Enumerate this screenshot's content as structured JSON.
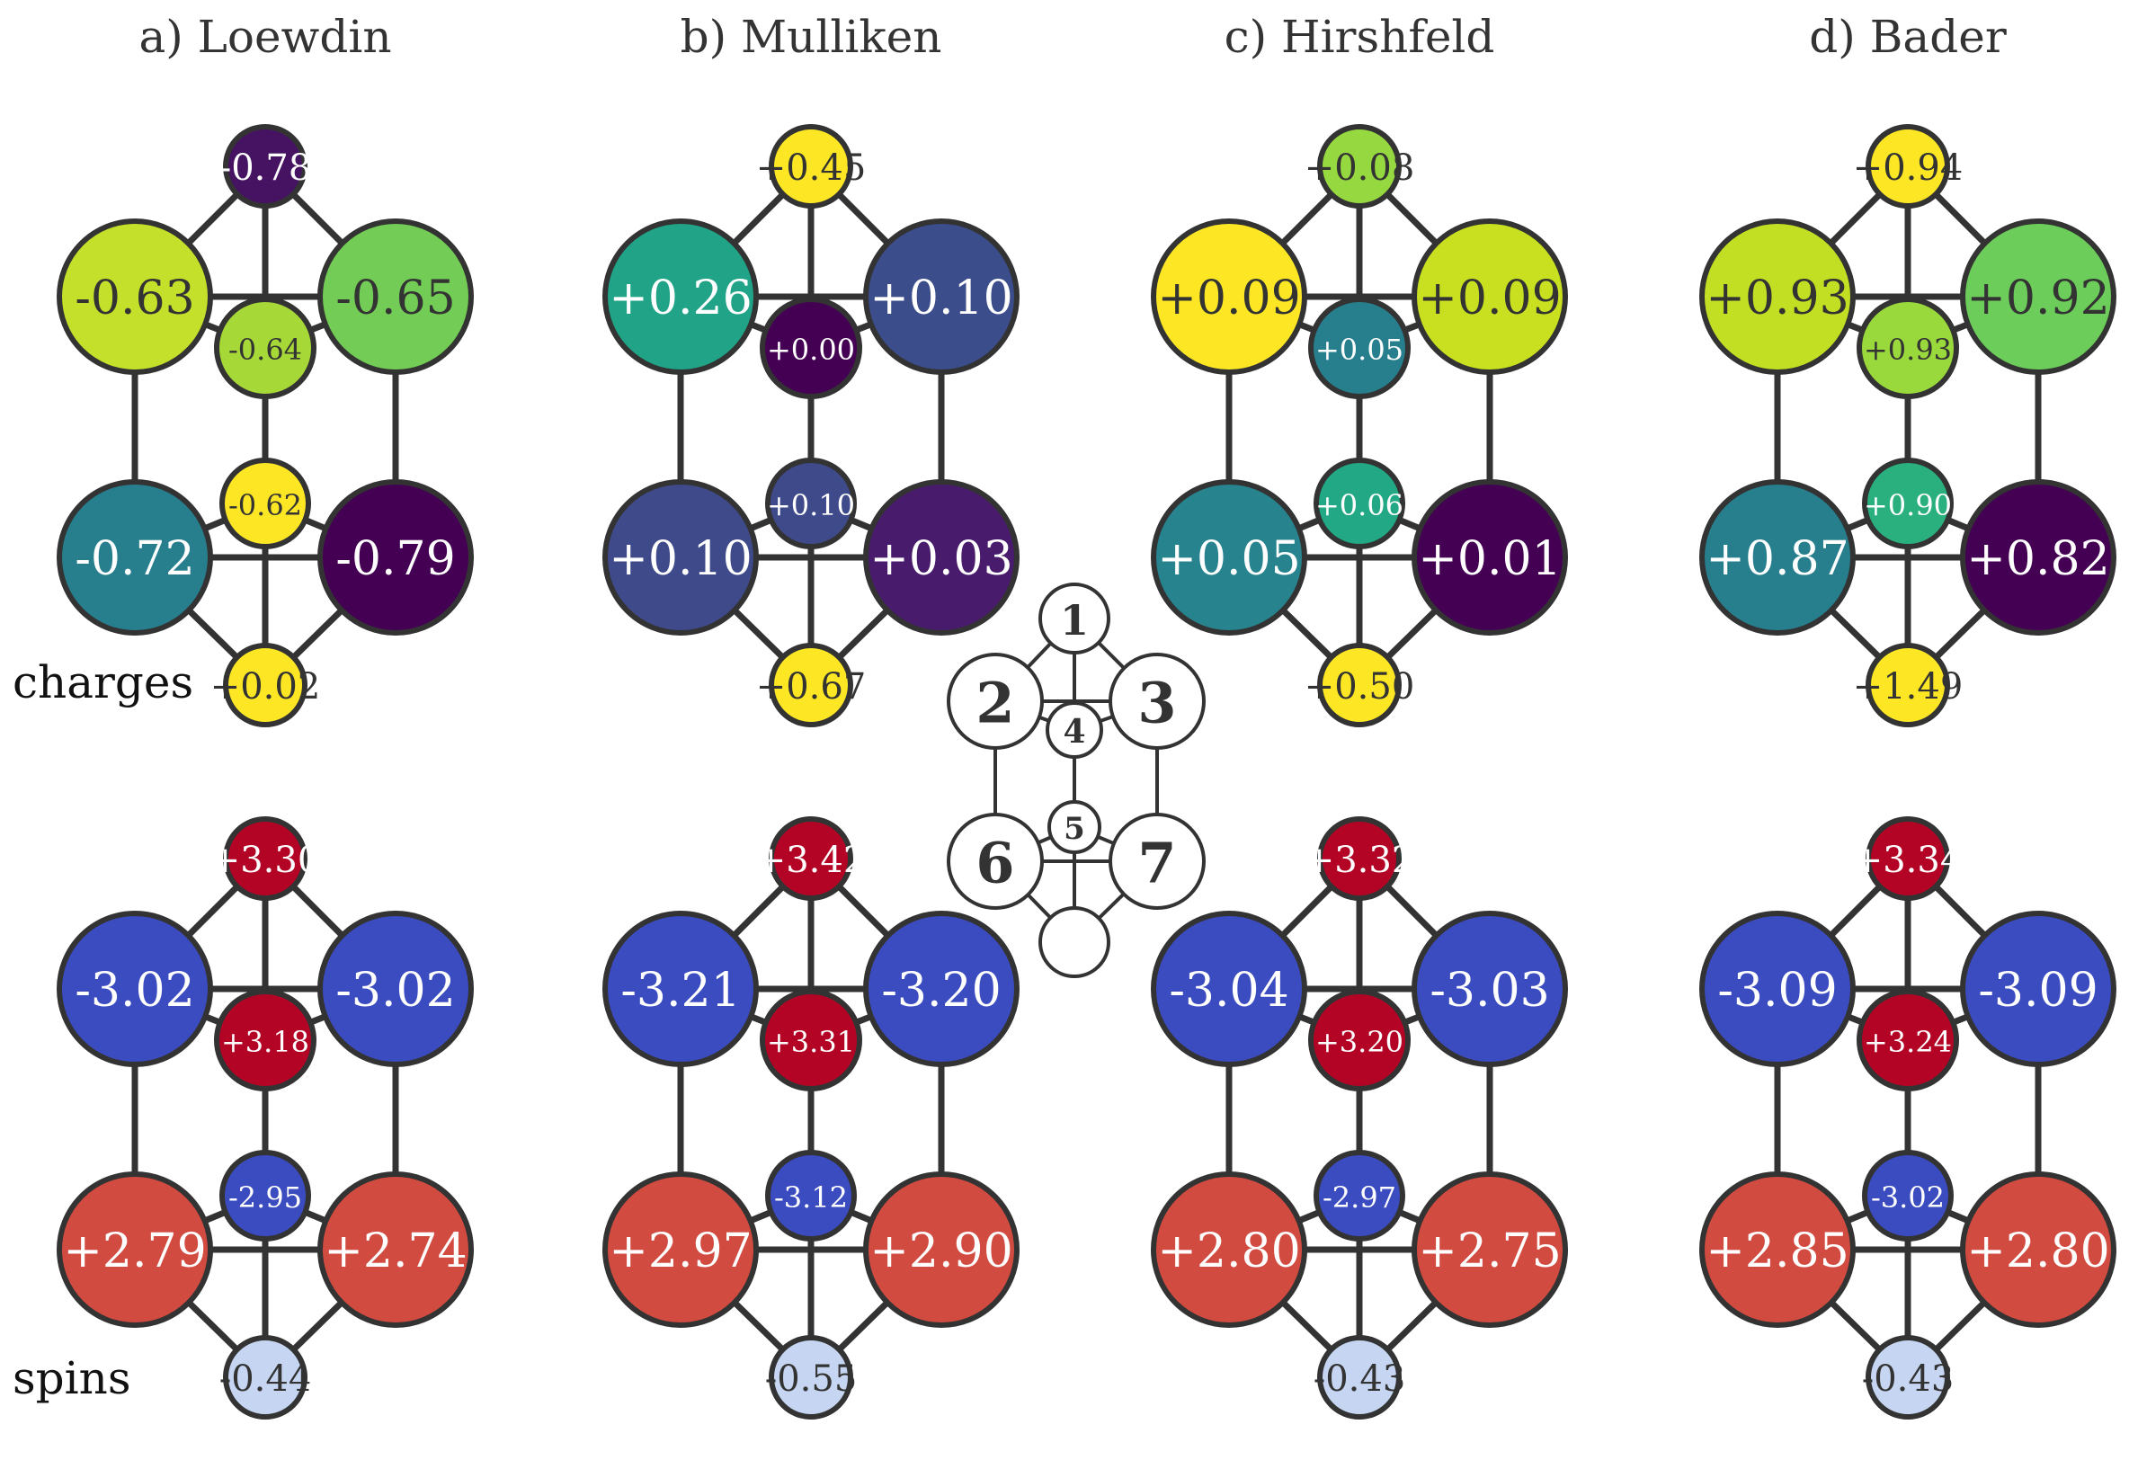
{
  "titles": [
    "a) Loewdin",
    "b) Mulliken",
    "c) Hirshfeld",
    "d) Bader"
  ],
  "row_labels": {
    "charges": "charges",
    "spins": "spins"
  },
  "key_labels": [
    "1",
    "2",
    "3",
    "4",
    "5",
    "6",
    "7"
  ],
  "panels": [
    {
      "method": "Loewdin",
      "charges": [
        {
          "label": "-0.78",
          "color": "#451362",
          "text": "#ffffff"
        },
        {
          "label": "-0.63",
          "color": "#c4e02a",
          "text": "#333333"
        },
        {
          "label": "-0.65",
          "color": "#72cc55",
          "text": "#333333"
        },
        {
          "label": "-0.64",
          "color": "#a6d838",
          "text": "#333333"
        },
        {
          "label": "-0.62",
          "color": "#fde725",
          "text": "#333333"
        },
        {
          "label": "-0.72",
          "color": "#277f8e",
          "text": "#ffffff"
        },
        {
          "label": "-0.79",
          "color": "#440154",
          "text": "#ffffff"
        },
        {
          "label": "+0.02",
          "color": "#fde725",
          "text": "#333333"
        }
      ],
      "spins": [
        {
          "label": "+3.30",
          "color": "#b40426",
          "text": "#ffffff"
        },
        {
          "label": "-3.02",
          "color": "#3b4cc0",
          "text": "#ffffff"
        },
        {
          "label": "-3.02",
          "color": "#3b4cc0",
          "text": "#ffffff"
        },
        {
          "label": "+3.18",
          "color": "#b40426",
          "text": "#ffffff"
        },
        {
          "label": "-2.95",
          "color": "#3b4cc0",
          "text": "#ffffff"
        },
        {
          "label": "+2.79",
          "color": "#d24b40",
          "text": "#ffffff"
        },
        {
          "label": "+2.74",
          "color": "#d24b40",
          "text": "#ffffff"
        },
        {
          "label": "-0.44",
          "color": "#c6d6f2",
          "text": "#333333"
        }
      ]
    },
    {
      "method": "Mulliken",
      "charges": [
        {
          "label": "+0.45",
          "color": "#fde725",
          "text": "#333333"
        },
        {
          "label": "+0.26",
          "color": "#20a386",
          "text": "#ffffff"
        },
        {
          "label": "+0.10",
          "color": "#3b4d8a",
          "text": "#ffffff"
        },
        {
          "label": "+0.00",
          "color": "#440154",
          "text": "#ffffff"
        },
        {
          "label": "+0.10",
          "color": "#3e4a89",
          "text": "#ffffff"
        },
        {
          "label": "+0.10",
          "color": "#3e4a89",
          "text": "#ffffff"
        },
        {
          "label": "+0.03",
          "color": "#481b6d",
          "text": "#ffffff"
        },
        {
          "label": "+0.67",
          "color": "#fde725",
          "text": "#333333"
        }
      ],
      "spins": [
        {
          "label": "+3.42",
          "color": "#b40426",
          "text": "#ffffff"
        },
        {
          "label": "-3.21",
          "color": "#3b4cc0",
          "text": "#ffffff"
        },
        {
          "label": "-3.20",
          "color": "#3b4cc0",
          "text": "#ffffff"
        },
        {
          "label": "+3.31",
          "color": "#b40426",
          "text": "#ffffff"
        },
        {
          "label": "-3.12",
          "color": "#3b4cc0",
          "text": "#ffffff"
        },
        {
          "label": "+2.97",
          "color": "#d24b40",
          "text": "#ffffff"
        },
        {
          "label": "+2.90",
          "color": "#d24b40",
          "text": "#ffffff"
        },
        {
          "label": "-0.55",
          "color": "#c6d6f2",
          "text": "#333333"
        }
      ]
    },
    {
      "method": "Hirshfeld",
      "charges": [
        {
          "label": "+0.08",
          "color": "#95d840",
          "text": "#333333"
        },
        {
          "label": "+0.09",
          "color": "#fde725",
          "text": "#333333"
        },
        {
          "label": "+0.09",
          "color": "#c8e020",
          "text": "#333333"
        },
        {
          "label": "+0.05",
          "color": "#277f8e",
          "text": "#ffffff"
        },
        {
          "label": "+0.06",
          "color": "#22a884",
          "text": "#ffffff"
        },
        {
          "label": "+0.05",
          "color": "#27838e",
          "text": "#ffffff"
        },
        {
          "label": "+0.01",
          "color": "#440154",
          "text": "#ffffff"
        },
        {
          "label": "+0.50",
          "color": "#fde725",
          "text": "#333333"
        }
      ],
      "spins": [
        {
          "label": "+3.32",
          "color": "#b40426",
          "text": "#ffffff"
        },
        {
          "label": "-3.04",
          "color": "#3b4cc0",
          "text": "#ffffff"
        },
        {
          "label": "-3.03",
          "color": "#3b4cc0",
          "text": "#ffffff"
        },
        {
          "label": "+3.20",
          "color": "#b40426",
          "text": "#ffffff"
        },
        {
          "label": "-2.97",
          "color": "#3b4cc0",
          "text": "#ffffff"
        },
        {
          "label": "+2.80",
          "color": "#d24b40",
          "text": "#ffffff"
        },
        {
          "label": "+2.75",
          "color": "#d24b40",
          "text": "#ffffff"
        },
        {
          "label": "-0.43",
          "color": "#c6d6f2",
          "text": "#333333"
        }
      ]
    },
    {
      "method": "Bader",
      "charges": [
        {
          "label": "+0.94",
          "color": "#fde725",
          "text": "#333333"
        },
        {
          "label": "+0.93",
          "color": "#c2df23",
          "text": "#333333"
        },
        {
          "label": "+0.92",
          "color": "#6ccd5a",
          "text": "#333333"
        },
        {
          "label": "+0.93",
          "color": "#9ad93c",
          "text": "#333333"
        },
        {
          "label": "+0.90",
          "color": "#2ab07f",
          "text": "#ffffff"
        },
        {
          "label": "+0.87",
          "color": "#277f8e",
          "text": "#ffffff"
        },
        {
          "label": "+0.82",
          "color": "#440154",
          "text": "#ffffff"
        },
        {
          "label": "+1.49",
          "color": "#fde725",
          "text": "#333333"
        }
      ],
      "spins": [
        {
          "label": "+3.34",
          "color": "#b40426",
          "text": "#ffffff"
        },
        {
          "label": "-3.09",
          "color": "#3b4cc0",
          "text": "#ffffff"
        },
        {
          "label": "-3.09",
          "color": "#3b4cc0",
          "text": "#ffffff"
        },
        {
          "label": "+3.24",
          "color": "#b40426",
          "text": "#ffffff"
        },
        {
          "label": "-3.02",
          "color": "#3b4cc0",
          "text": "#ffffff"
        },
        {
          "label": "+2.85",
          "color": "#d24b40",
          "text": "#ffffff"
        },
        {
          "label": "+2.80",
          "color": "#d24b40",
          "text": "#ffffff"
        },
        {
          "label": "-0.43",
          "color": "#c6d6f2",
          "text": "#333333"
        }
      ]
    }
  ]
}
